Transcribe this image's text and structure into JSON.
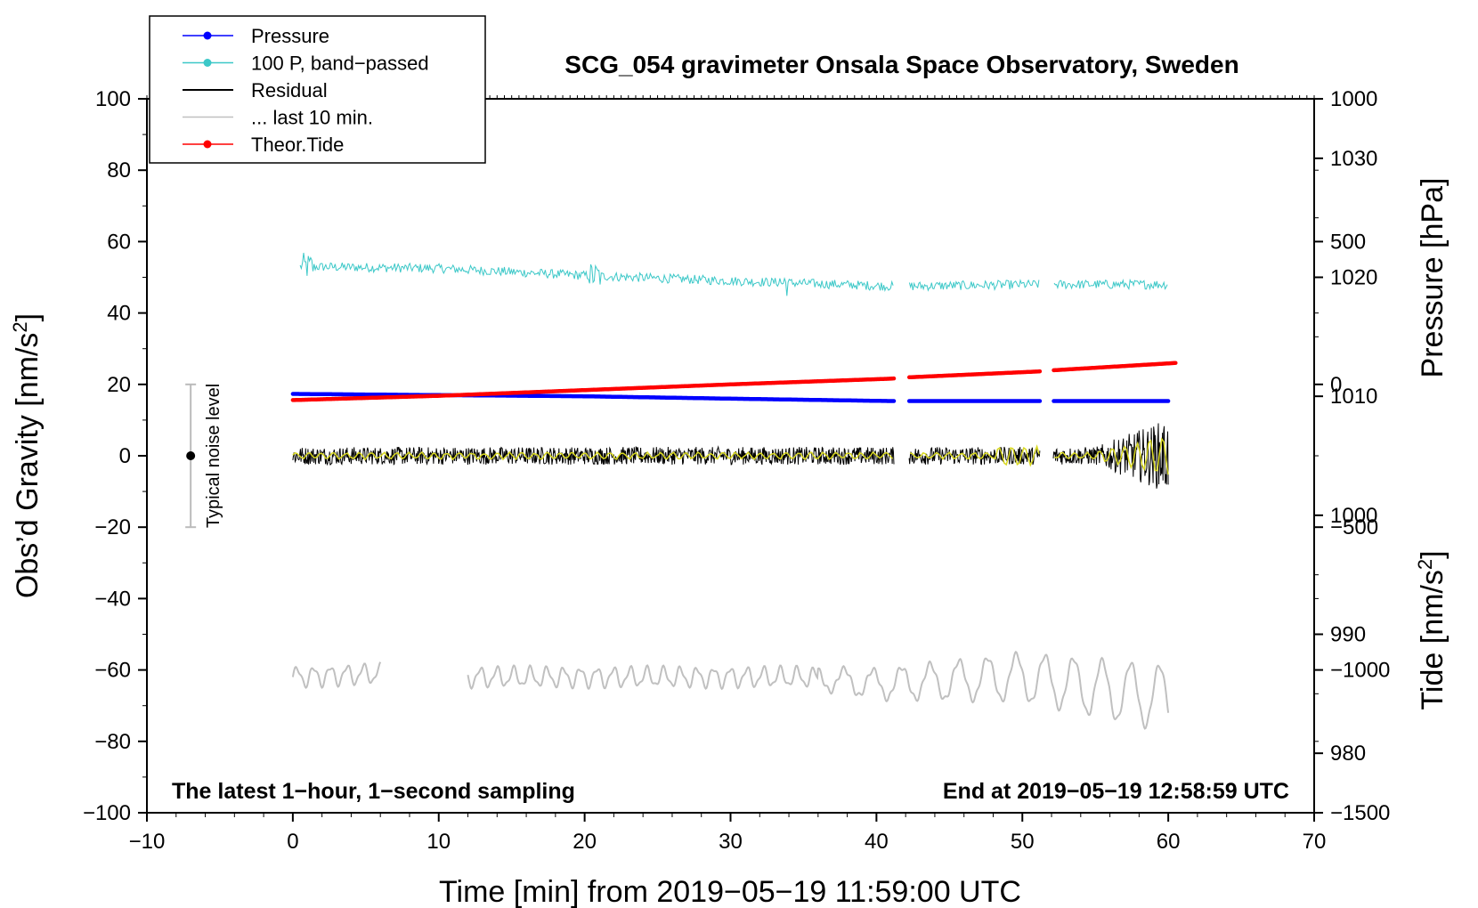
{
  "chart_data": {
    "type": "line",
    "title": "SCG_054 gravimeter Onsala Space Observatory, Sweden",
    "xlabel": "Time [min] from 2019−05−19 11:59:00 UTC",
    "ylabel_left": "Obs’d Gravity [nm/s",
    "ylabel_left_sup": "2",
    "ylabel_left_end": "]",
    "ylabel_right_top": "Pressure [hPa]",
    "ylabel_right_bottom": "Tide [nm/s",
    "ylabel_right_bottom_sup": "2",
    "ylabel_right_bottom_end": "]",
    "xlim": [
      -10,
      70
    ],
    "ylim_left": [
      -100,
      100
    ],
    "ylim_pressure": [
      975,
      1035
    ],
    "ylim_tide": [
      -1500,
      1000
    ],
    "x_ticks": [
      "−10",
      "0",
      "10",
      "20",
      "30",
      "40",
      "50",
      "60",
      "70"
    ],
    "y_left_ticks": [
      "100",
      "80",
      "60",
      "40",
      "20",
      "0",
      "−20",
      "−40",
      "−60",
      "−80",
      "−100"
    ],
    "y_pressure_ticks": [
      "1030",
      "1020",
      "1010",
      "1000",
      "990",
      "980"
    ],
    "y_tide_ticks": [
      "1000",
      "500",
      "0",
      "−500",
      "−1000",
      "−1500"
    ],
    "note_left": "The latest 1−hour, 1−second sampling",
    "note_right": "End at 2019−05−19 12:58:59 UTC",
    "noise_label": "Typical noise level",
    "noise_bar": {
      "x": -7,
      "center": 0,
      "low": -20,
      "high": 20
    },
    "gaps": [
      [
        41.2,
        42.2
      ],
      [
        51.2,
        52.1
      ]
    ],
    "legend_position": "top-left",
    "legend": [
      {
        "name": "Pressure",
        "color": "#0000ff",
        "marker": true
      },
      {
        "name": "100 P, band−passed",
        "color": "#3cc8c8",
        "marker": true
      },
      {
        "name": "Residual",
        "color": "#000000",
        "marker": false
      },
      {
        "name": "... last 10 min.",
        "color": "#c0c0c0",
        "marker": false
      },
      {
        "name": "Theor.Tide",
        "color": "#ff0000",
        "marker": true
      }
    ],
    "series": [
      {
        "name": "Pressure",
        "axis": "pressure",
        "color": "#0000ff",
        "x": [
          0,
          10,
          20,
          30,
          41,
          42.3,
          51,
          52.3,
          60
        ],
        "values": [
          1010.2,
          1010.1,
          1010.0,
          1009.8,
          1009.6,
          1009.6,
          1009.6,
          1009.6,
          1009.6
        ]
      },
      {
        "name": "100 P, band−passed",
        "axis": "left",
        "color": "#3cc8c8",
        "x": [
          0.5,
          10,
          20,
          30,
          41,
          42.3,
          51,
          52.3,
          60
        ],
        "values": [
          53,
          52.5,
          50.5,
          49,
          47.5,
          47.5,
          48,
          48,
          48
        ]
      },
      {
        "name": "Residual",
        "axis": "left",
        "color": "#000000",
        "x": [
          0,
          10,
          20,
          30,
          41,
          42.3,
          51,
          52.3,
          55,
          60
        ],
        "values": [
          0,
          0,
          0,
          0,
          0,
          0,
          0,
          0,
          0,
          0
        ]
      },
      {
        "name": "Theor.Tide",
        "axis": "tide",
        "color": "#ff0000",
        "x": [
          0,
          10,
          20,
          30,
          41,
          42.3,
          51,
          52.3,
          60.5
        ],
        "values": [
          -55,
          -40,
          -20,
          0,
          20,
          25,
          45,
          50,
          75
        ]
      },
      {
        "name": "... last 10 min.",
        "axis": "left",
        "color": "#c0c0c0",
        "x": [
          0,
          6,
          12,
          35,
          40,
          50,
          60
        ],
        "values": [
          -62,
          -61,
          -62,
          -62,
          -64,
          -62,
          -68
        ]
      }
    ]
  }
}
